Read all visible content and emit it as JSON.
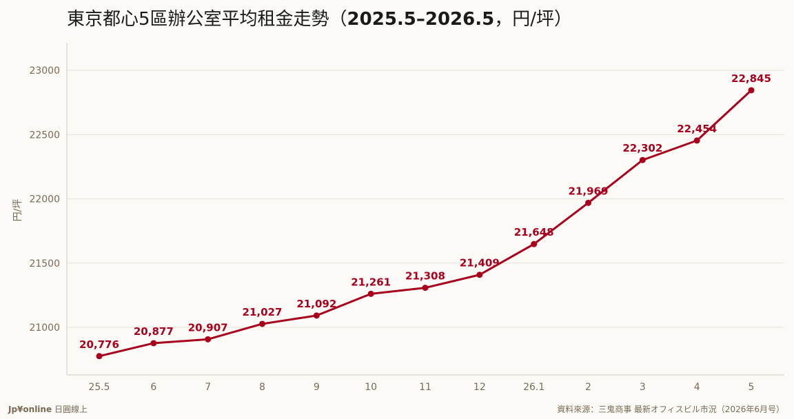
{
  "chart_data": {
    "type": "line",
    "title_main": "東京都心5區辦公室平均租金走勢（",
    "title_period": "2025.5–2026.5",
    "title_unit": "，円/坪）",
    "ylabel": "円/坪",
    "x": [
      "25.5",
      "6",
      "7",
      "8",
      "9",
      "10",
      "11",
      "12",
      "26.1",
      "2",
      "3",
      "4",
      "5"
    ],
    "series": [
      {
        "values": [
          20776,
          20877,
          20907,
          21027,
          21092,
          21261,
          21308,
          21409,
          21648,
          21969,
          22302,
          22454,
          22845
        ],
        "data_labels": [
          "20,776",
          "20,877",
          "20,907",
          "21,027",
          "21,092",
          "21,261",
          "21,308",
          "21,409",
          "21,648",
          "21,969",
          "22,302",
          "22,454",
          "22,845"
        ],
        "color": "#a8001c"
      }
    ],
    "y_ticks": [
      21000,
      21500,
      22000,
      22500,
      23000
    ],
    "ylim": [
      20630,
      23215
    ],
    "grid": true,
    "legend": "none"
  },
  "footer": {
    "brand": "Jp¥online",
    "brand_suffix": "日圓線上",
    "source": "資料來源：三鬼商事 最新オフィスビル市況（2026年6月号）"
  },
  "colors": {
    "line": "#a8001c",
    "background": "#fbfaf7",
    "grid": "#e6e2da",
    "axis_text": "#7a6a55"
  }
}
